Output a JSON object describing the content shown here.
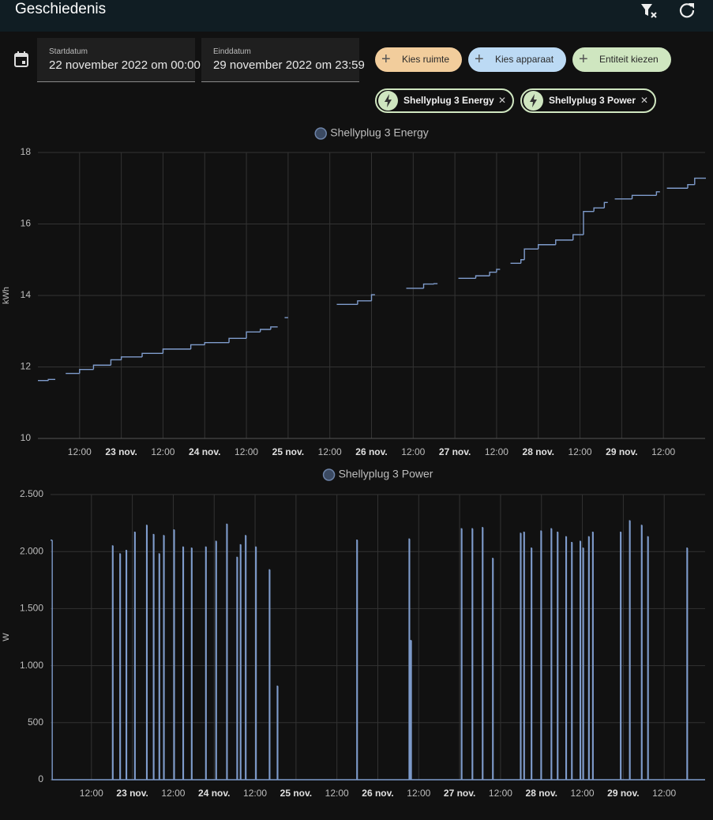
{
  "header": {
    "title": "Geschiedenis"
  },
  "date_range": {
    "start": {
      "label": "Startdatum",
      "value": "22 november 2022 om 00:00"
    },
    "end": {
      "label": "Einddatum",
      "value": "29 november 2022 om 23:59"
    }
  },
  "pickers": [
    "Kies ruimte",
    "Kies apparaat",
    "Entiteit kiezen"
  ],
  "entities": [
    "Shellyplug 3 Energy",
    "Shellyplug 3 Power"
  ],
  "chart_data": [
    {
      "type": "line",
      "step": true,
      "grid": true,
      "y_label": "kWh",
      "xlim": [
        "2022-11-22T00:00",
        "2022-11-30T00:00"
      ],
      "xticks": [
        {
          "value": "2022-11-22T12:00",
          "label": "12:00"
        },
        {
          "value": "2022-11-23T00:00",
          "label": "23 nov."
        },
        {
          "value": "2022-11-23T12:00",
          "label": "12:00"
        },
        {
          "value": "2022-11-24T00:00",
          "label": "24 nov."
        },
        {
          "value": "2022-11-24T12:00",
          "label": "12:00"
        },
        {
          "value": "2022-11-25T00:00",
          "label": "25 nov."
        },
        {
          "value": "2022-11-25T12:00",
          "label": "12:00"
        },
        {
          "value": "2022-11-26T00:00",
          "label": "26 nov."
        },
        {
          "value": "2022-11-26T12:00",
          "label": "12:00"
        },
        {
          "value": "2022-11-27T00:00",
          "label": "27 nov."
        },
        {
          "value": "2022-11-27T12:00",
          "label": "12:00"
        },
        {
          "value": "2022-11-28T00:00",
          "label": "28 nov."
        },
        {
          "value": "2022-11-28T12:00",
          "label": "12:00"
        },
        {
          "value": "2022-11-29T00:00",
          "label": "29 nov."
        },
        {
          "value": "2022-11-29T12:00",
          "label": "12:00"
        }
      ],
      "ylim": [
        10,
        18
      ],
      "yticks": [
        10,
        12,
        14,
        16,
        18
      ],
      "x": [
        "2022-11-22T00:00",
        "2022-11-22T03:00",
        "2022-11-22T05:00",
        "2022-11-22T08:00",
        "2022-11-22T12:00",
        "2022-11-22T16:00",
        "2022-11-22T21:00",
        "2022-11-23T00:00",
        "2022-11-23T06:00",
        "2022-11-23T12:00",
        "2022-11-23T20:00",
        "2022-11-24T00:00",
        "2022-11-24T07:00",
        "2022-11-24T12:00",
        "2022-11-24T16:00",
        "2022-11-24T19:00",
        "2022-11-24T21:00",
        "2022-11-24T23:00",
        "2022-11-25T00:00",
        "2022-11-25T14:00",
        "2022-11-25T20:00",
        "2022-11-26T00:00",
        "2022-11-26T01:00",
        "2022-11-26T10:00",
        "2022-11-26T15:00",
        "2022-11-26T18:00",
        "2022-11-26T19:00",
        "2022-11-27T01:00",
        "2022-11-27T06:00",
        "2022-11-27T10:00",
        "2022-11-27T12:00",
        "2022-11-27T13:00",
        "2022-11-27T16:00",
        "2022-11-27T19:00",
        "2022-11-27T20:00",
        "2022-11-28T00:00",
        "2022-11-28T05:00",
        "2022-11-28T10:00",
        "2022-11-28T13:00",
        "2022-11-28T16:00",
        "2022-11-28T19:00",
        "2022-11-28T20:00",
        "2022-11-28T22:00",
        "2022-11-29T03:00",
        "2022-11-29T10:00",
        "2022-11-29T11:00",
        "2022-11-29T13:00",
        "2022-11-29T19:00",
        "2022-11-29T21:00",
        "2022-11-30T00:00"
      ],
      "series": [
        {
          "name": "Shellyplug 3 Energy",
          "color": "#7f9ccc",
          "values": [
            11.62,
            11.65,
            null,
            11.82,
            11.93,
            12.05,
            12.2,
            12.28,
            12.38,
            12.5,
            12.62,
            12.68,
            12.8,
            12.98,
            13.05,
            13.12,
            null,
            13.38,
            null,
            13.75,
            13.85,
            14.02,
            null,
            14.2,
            14.32,
            14.33,
            null,
            14.48,
            14.55,
            14.65,
            14.73,
            null,
            14.9,
            15.0,
            15.3,
            15.42,
            15.55,
            15.7,
            16.35,
            16.45,
            16.6,
            null,
            16.7,
            16.8,
            16.9,
            null,
            17.0,
            17.1,
            17.28,
            17.28
          ]
        }
      ]
    },
    {
      "type": "line",
      "step": true,
      "grid": true,
      "y_label": "W",
      "xlim": [
        "2022-11-22T00:00",
        "2022-11-30T00:00"
      ],
      "xticks": [
        {
          "value": "2022-11-22T12:00",
          "label": "12:00"
        },
        {
          "value": "2022-11-23T00:00",
          "label": "23 nov."
        },
        {
          "value": "2022-11-23T12:00",
          "label": "12:00"
        },
        {
          "value": "2022-11-24T00:00",
          "label": "24 nov."
        },
        {
          "value": "2022-11-24T12:00",
          "label": "12:00"
        },
        {
          "value": "2022-11-25T00:00",
          "label": "25 nov."
        },
        {
          "value": "2022-11-25T12:00",
          "label": "12:00"
        },
        {
          "value": "2022-11-26T00:00",
          "label": "26 nov."
        },
        {
          "value": "2022-11-26T12:00",
          "label": "12:00"
        },
        {
          "value": "2022-11-27T00:00",
          "label": "27 nov."
        },
        {
          "value": "2022-11-27T12:00",
          "label": "12:00"
        },
        {
          "value": "2022-11-28T00:00",
          "label": "28 nov."
        },
        {
          "value": "2022-11-28T12:00",
          "label": "12:00"
        },
        {
          "value": "2022-11-29T00:00",
          "label": "29 nov."
        },
        {
          "value": "2022-11-29T12:00",
          "label": "12:00"
        }
      ],
      "ylim": [
        0,
        2500
      ],
      "yticks": [
        0,
        500,
        {
          "value": 1000,
          "label": "1.000"
        },
        {
          "value": 1500,
          "label": "1.500"
        },
        {
          "value": 2000,
          "label": "2.000"
        },
        {
          "value": 2500,
          "label": "2.500"
        }
      ],
      "x": [
        "2022-11-22T00:00",
        "2022-11-22T00:30",
        "2022-11-22T18:10",
        "2022-11-22T18:20",
        "2022-11-22T20:20",
        "2022-11-22T20:30",
        "2022-11-22T22:10",
        "2022-11-22T22:20",
        "2022-11-23T00:40",
        "2022-11-23T00:50",
        "2022-11-23T04:10",
        "2022-11-23T04:20",
        "2022-11-23T06:10",
        "2022-11-23T06:20",
        "2022-11-23T07:50",
        "2022-11-23T08:00",
        "2022-11-23T09:10",
        "2022-11-23T09:20",
        "2022-11-23T12:10",
        "2022-11-23T12:20",
        "2022-11-23T14:50",
        "2022-11-23T15:00",
        "2022-11-23T17:20",
        "2022-11-23T17:30",
        "2022-11-23T21:30",
        "2022-11-23T21:40",
        "2022-11-24T00:30",
        "2022-11-24T00:40",
        "2022-11-24T03:40",
        "2022-11-24T03:50",
        "2022-11-24T06:40",
        "2022-11-24T06:50",
        "2022-11-24T07:40",
        "2022-11-24T07:50",
        "2022-11-24T09:10",
        "2022-11-24T09:20",
        "2022-11-24T12:10",
        "2022-11-24T12:20",
        "2022-11-24T16:10",
        "2022-11-24T16:20",
        "2022-11-24T18:30",
        "2022-11-24T18:40",
        "2022-11-25T17:50",
        "2022-11-25T18:00",
        "2022-11-26T09:10",
        "2022-11-26T09:20",
        "2022-11-26T09:40",
        "2022-11-26T09:50",
        "2022-11-27T00:30",
        "2022-11-27T00:40",
        "2022-11-27T03:40",
        "2022-11-27T03:50",
        "2022-11-27T06:40",
        "2022-11-27T06:50",
        "2022-11-27T09:40",
        "2022-11-27T09:50",
        "2022-11-27T17:50",
        "2022-11-27T18:00",
        "2022-11-27T18:50",
        "2022-11-27T19:00",
        "2022-11-27T21:00",
        "2022-11-27T21:10",
        "2022-11-27T23:50",
        "2022-11-28T00:00",
        "2022-11-28T02:50",
        "2022-11-28T03:00",
        "2022-11-28T04:40",
        "2022-11-28T04:50",
        "2022-11-28T07:10",
        "2022-11-28T07:20",
        "2022-11-28T08:50",
        "2022-11-28T09:00",
        "2022-11-28T11:20",
        "2022-11-28T11:30",
        "2022-11-28T12:10",
        "2022-11-28T12:20",
        "2022-11-28T13:50",
        "2022-11-28T14:00",
        "2022-11-28T15:00",
        "2022-11-28T15:10",
        "2022-11-28T23:10",
        "2022-11-28T23:20",
        "2022-11-29T01:50",
        "2022-11-29T02:00",
        "2022-11-29T05:20",
        "2022-11-29T05:30",
        "2022-11-29T07:10",
        "2022-11-29T07:20",
        "2022-11-29T18:40",
        "2022-11-29T18:50"
      ],
      "series": [
        {
          "name": "Shellyplug 3 Power",
          "color": "#7f9ccc",
          "values": [
            2100,
            0,
            2050,
            0,
            1980,
            0,
            2010,
            0,
            2170,
            0,
            2230,
            0,
            2150,
            0,
            1980,
            0,
            2140,
            0,
            2190,
            0,
            2040,
            0,
            2030,
            0,
            2040,
            0,
            2090,
            0,
            2240,
            0,
            1950,
            0,
            2060,
            0,
            2140,
            0,
            2040,
            0,
            1840,
            0,
            820,
            0,
            2100,
            0,
            2110,
            0,
            1220,
            0,
            2200,
            0,
            2200,
            0,
            2210,
            0,
            1940,
            0,
            2160,
            0,
            2170,
            0,
            2030,
            0,
            2180,
            0,
            2200,
            0,
            2170,
            0,
            2130,
            0,
            2080,
            0,
            2090,
            0,
            2030,
            0,
            2130,
            0,
            2170,
            0,
            2170,
            0,
            2270,
            0,
            2230,
            0,
            2130,
            0,
            2030,
            0
          ]
        }
      ]
    }
  ]
}
